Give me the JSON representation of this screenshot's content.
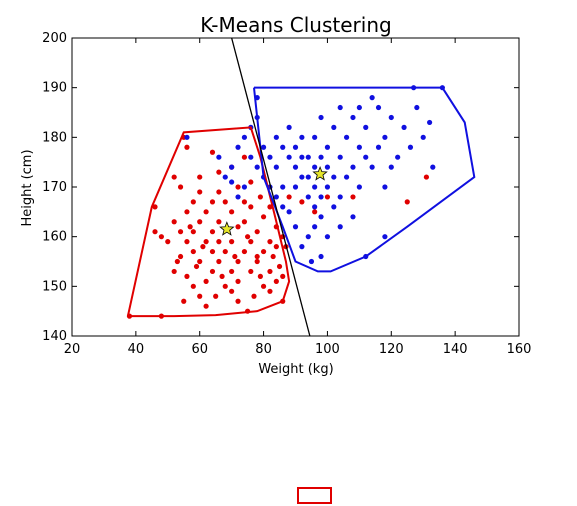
{
  "chart_data": {
    "type": "scatter",
    "title": "K-Means Clustering",
    "xlabel": "Weight (kg)",
    "ylabel": "Height (cm)",
    "xlim": [
      20,
      160
    ],
    "ylim": [
      140,
      200
    ],
    "xticks": [
      20,
      40,
      60,
      80,
      100,
      120,
      140,
      160
    ],
    "yticks": [
      140,
      150,
      160,
      170,
      180,
      190,
      200
    ],
    "grid": false,
    "colors": {
      "cluster_red": "#e00000",
      "cluster_blue": "#1010e0",
      "centroid": "#e6e62a",
      "boundary": "#000000"
    },
    "centroids": [
      {
        "x": 68.5,
        "y": 161.5,
        "color": "#e6e62a"
      },
      {
        "x": 97.7,
        "y": 172.6,
        "color": "#e6e62a"
      }
    ],
    "decision_boundary": [
      [
        70,
        200
      ],
      [
        94.5,
        140
      ]
    ],
    "hulls": [
      {
        "color": "#e00000",
        "points": [
          [
            37.5,
            144
          ],
          [
            52,
            144
          ],
          [
            65,
            144.2
          ],
          [
            78,
            145
          ],
          [
            86,
            147
          ],
          [
            88,
            151
          ],
          [
            87,
            155
          ],
          [
            84,
            163
          ],
          [
            79,
            176
          ],
          [
            76,
            182
          ],
          [
            55,
            181
          ],
          [
            45,
            166
          ],
          [
            37.5,
            144
          ]
        ]
      },
      {
        "color": "#1010e0",
        "points": [
          [
            77,
            190
          ],
          [
            127,
            190
          ],
          [
            136,
            190
          ],
          [
            143,
            183
          ],
          [
            146,
            172
          ],
          [
            125,
            162
          ],
          [
            112,
            156
          ],
          [
            101,
            153
          ],
          [
            97,
            153
          ],
          [
            90,
            155
          ],
          [
            86,
            162
          ],
          [
            80,
            172
          ],
          [
            77,
            190
          ]
        ]
      }
    ],
    "series": [
      {
        "color": "#e00000",
        "points": [
          [
            38,
            144
          ],
          [
            48,
            144
          ],
          [
            75,
            145
          ],
          [
            86,
            147
          ],
          [
            60,
            148
          ],
          [
            55,
            147
          ],
          [
            65,
            148
          ],
          [
            70,
            149
          ],
          [
            77,
            148
          ],
          [
            82,
            149
          ],
          [
            58,
            150
          ],
          [
            62,
            151
          ],
          [
            68,
            150
          ],
          [
            72,
            151
          ],
          [
            80,
            150
          ],
          [
            84,
            151
          ],
          [
            86,
            152
          ],
          [
            56,
            152
          ],
          [
            52,
            153
          ],
          [
            64,
            153
          ],
          [
            70,
            153
          ],
          [
            76,
            153
          ],
          [
            82,
            153
          ],
          [
            85,
            154
          ],
          [
            60,
            155
          ],
          [
            66,
            155
          ],
          [
            72,
            155
          ],
          [
            78,
            155
          ],
          [
            54,
            156
          ],
          [
            58,
            157
          ],
          [
            64,
            157
          ],
          [
            68,
            157
          ],
          [
            74,
            157
          ],
          [
            80,
            157
          ],
          [
            84,
            158
          ],
          [
            50,
            159
          ],
          [
            56,
            159
          ],
          [
            62,
            159
          ],
          [
            66,
            159
          ],
          [
            70,
            159
          ],
          [
            76,
            159
          ],
          [
            82,
            159
          ],
          [
            86,
            160
          ],
          [
            48,
            160
          ],
          [
            54,
            161
          ],
          [
            58,
            161
          ],
          [
            64,
            161
          ],
          [
            72,
            162
          ],
          [
            78,
            161
          ],
          [
            84,
            162
          ],
          [
            46,
            161
          ],
          [
            52,
            163
          ],
          [
            60,
            163
          ],
          [
            66,
            163
          ],
          [
            74,
            163
          ],
          [
            80,
            164
          ],
          [
            56,
            165
          ],
          [
            62,
            165
          ],
          [
            70,
            165
          ],
          [
            76,
            166
          ],
          [
            82,
            166
          ],
          [
            58,
            167
          ],
          [
            64,
            167
          ],
          [
            68,
            167
          ],
          [
            74,
            167
          ],
          [
            79,
            168
          ],
          [
            54,
            170
          ],
          [
            60,
            169
          ],
          [
            66,
            169
          ],
          [
            72,
            170
          ],
          [
            76,
            171
          ],
          [
            60,
            172
          ],
          [
            66,
            173
          ],
          [
            70,
            174
          ],
          [
            74,
            176
          ],
          [
            56,
            178
          ],
          [
            64,
            177
          ],
          [
            52,
            172
          ],
          [
            88,
            168
          ],
          [
            92,
            167
          ],
          [
            96,
            165
          ],
          [
            100,
            168
          ],
          [
            108,
            168
          ],
          [
            125,
            167
          ],
          [
            131,
            172
          ],
          [
            46,
            166
          ],
          [
            55,
            180
          ],
          [
            78,
            156
          ],
          [
            62,
            146
          ],
          [
            72,
            147
          ],
          [
            53,
            155
          ],
          [
            57,
            162
          ],
          [
            61,
            158
          ],
          [
            67,
            152
          ],
          [
            71,
            156
          ],
          [
            75,
            160
          ],
          [
            79,
            152
          ],
          [
            83,
            156
          ],
          [
            87,
            158
          ],
          [
            59,
            154
          ]
        ]
      },
      {
        "color": "#1010e0",
        "points": [
          [
            56,
            180
          ],
          [
            66,
            176
          ],
          [
            70,
            174
          ],
          [
            72,
            178
          ],
          [
            74,
            180
          ],
          [
            76,
            182
          ],
          [
            78,
            184
          ],
          [
            78,
            188
          ],
          [
            80,
            178
          ],
          [
            82,
            176
          ],
          [
            84,
            180
          ],
          [
            84,
            174
          ],
          [
            86,
            170
          ],
          [
            86,
            178
          ],
          [
            88,
            176
          ],
          [
            88,
            182
          ],
          [
            90,
            170
          ],
          [
            90,
            174
          ],
          [
            90,
            178
          ],
          [
            92,
            172
          ],
          [
            92,
            176
          ],
          [
            92,
            180
          ],
          [
            94,
            168
          ],
          [
            94,
            172
          ],
          [
            94,
            176
          ],
          [
            96,
            166
          ],
          [
            96,
            170
          ],
          [
            96,
            174
          ],
          [
            96,
            180
          ],
          [
            98,
            164
          ],
          [
            98,
            168
          ],
          [
            98,
            176
          ],
          [
            98,
            184
          ],
          [
            100,
            170
          ],
          [
            100,
            174
          ],
          [
            100,
            178
          ],
          [
            102,
            166
          ],
          [
            102,
            172
          ],
          [
            102,
            182
          ],
          [
            104,
            168
          ],
          [
            104,
            176
          ],
          [
            104,
            186
          ],
          [
            106,
            172
          ],
          [
            106,
            180
          ],
          [
            108,
            174
          ],
          [
            108,
            184
          ],
          [
            110,
            170
          ],
          [
            110,
            178
          ],
          [
            110,
            186
          ],
          [
            112,
            176
          ],
          [
            112,
            182
          ],
          [
            114,
            174
          ],
          [
            114,
            188
          ],
          [
            116,
            178
          ],
          [
            116,
            186
          ],
          [
            118,
            170
          ],
          [
            118,
            180
          ],
          [
            120,
            174
          ],
          [
            120,
            184
          ],
          [
            122,
            176
          ],
          [
            124,
            182
          ],
          [
            126,
            178
          ],
          [
            128,
            186
          ],
          [
            130,
            180
          ],
          [
            132,
            183
          ],
          [
            133,
            174
          ],
          [
            127,
            190
          ],
          [
            136,
            190
          ],
          [
            100,
            160
          ],
          [
            98,
            156
          ],
          [
            95,
            155
          ],
          [
            92,
            158
          ],
          [
            90,
            162
          ],
          [
            88,
            165
          ],
          [
            86,
            166
          ],
          [
            84,
            168
          ],
          [
            82,
            170
          ],
          [
            80,
            172
          ],
          [
            78,
            174
          ],
          [
            76,
            176
          ],
          [
            74,
            170
          ],
          [
            72,
            168
          ],
          [
            70,
            171
          ],
          [
            68,
            172
          ],
          [
            112,
            156
          ],
          [
            118,
            160
          ],
          [
            108,
            164
          ],
          [
            104,
            162
          ],
          [
            96,
            162
          ],
          [
            94,
            160
          ]
        ]
      }
    ]
  },
  "legend": {
    "border_color": "#e00000"
  }
}
